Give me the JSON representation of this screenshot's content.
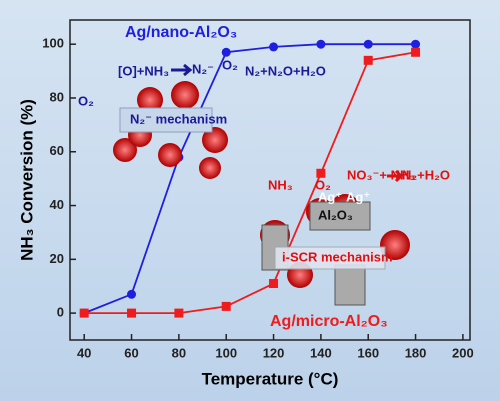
{
  "chart_data": {
    "type": "line",
    "x": [
      40,
      60,
      80,
      100,
      120,
      140,
      160,
      180
    ],
    "series": [
      {
        "name": "Ag/nano-Al₂O₃",
        "color": "#1f1fe0",
        "values": [
          0,
          7,
          58,
          97,
          99,
          100,
          100,
          100
        ]
      },
      {
        "name": "Ag/micro-Al₂O₃",
        "color": "#ee1c1c",
        "values": [
          0,
          0,
          0,
          2.5,
          11,
          52,
          94,
          97
        ]
      }
    ],
    "xlabel": "Temperature (°C)",
    "ylabel": "NH₃ Conversion (%)",
    "xlim": [
      34,
      203
    ],
    "xticks": [
      40,
      60,
      80,
      100,
      120,
      140,
      160,
      180,
      200
    ],
    "ylim": [
      -10,
      109
    ],
    "yticks": [
      0,
      20,
      40,
      60,
      80,
      100
    ],
    "annotations": [
      "[O]+NH₃",
      "N₂⁻",
      "O₂",
      "O₂",
      "N₂+N₂O+H₂O",
      "N₂⁻ mechanism",
      "NH₃",
      "O₂",
      "NO₃⁻+ NH₃",
      "N₂+H₂O",
      "Al₂O₃",
      "i-SCR mechanism",
      "Ag⁺",
      "Ag⁺"
    ]
  }
}
